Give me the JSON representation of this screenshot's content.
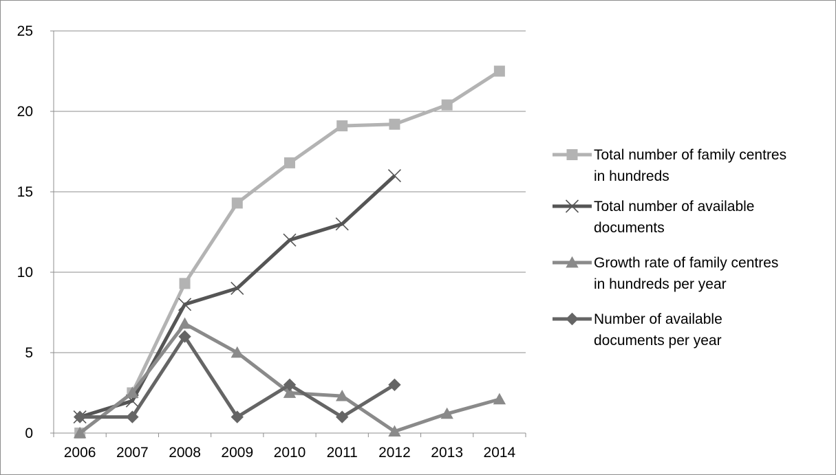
{
  "chart_data": {
    "type": "line",
    "categories": [
      "2006",
      "2007",
      "2008",
      "2009",
      "2010",
      "2011",
      "2012",
      "2013",
      "2014"
    ],
    "ylim": [
      0,
      25
    ],
    "yticks": [
      0,
      5,
      10,
      15,
      20,
      25
    ],
    "grid": true,
    "legend_position": "right",
    "series": [
      {
        "name_lines": [
          "Total number of family centres",
          "in hundreds"
        ],
        "marker": "square",
        "color": "#b3b3b3",
        "values": [
          0,
          2.5,
          9.3,
          14.3,
          16.8,
          19.1,
          19.2,
          20.4,
          22.5
        ]
      },
      {
        "name_lines": [
          "Total number of available",
          "documents"
        ],
        "marker": "x",
        "color": "#555555",
        "values": [
          1,
          2,
          8,
          9,
          12,
          13,
          16,
          null,
          null
        ]
      },
      {
        "name_lines": [
          "Growth rate of family centres",
          "in hundreds per year"
        ],
        "marker": "triangle",
        "color": "#8a8a8a",
        "values": [
          0,
          2.5,
          6.8,
          5,
          2.5,
          2.3,
          0.1,
          1.2,
          2.1
        ]
      },
      {
        "name_lines": [
          "Number of available",
          "documents per year"
        ],
        "marker": "diamond",
        "color": "#656565",
        "values": [
          1,
          1,
          6,
          1,
          3,
          1,
          3,
          null,
          null
        ]
      }
    ]
  }
}
